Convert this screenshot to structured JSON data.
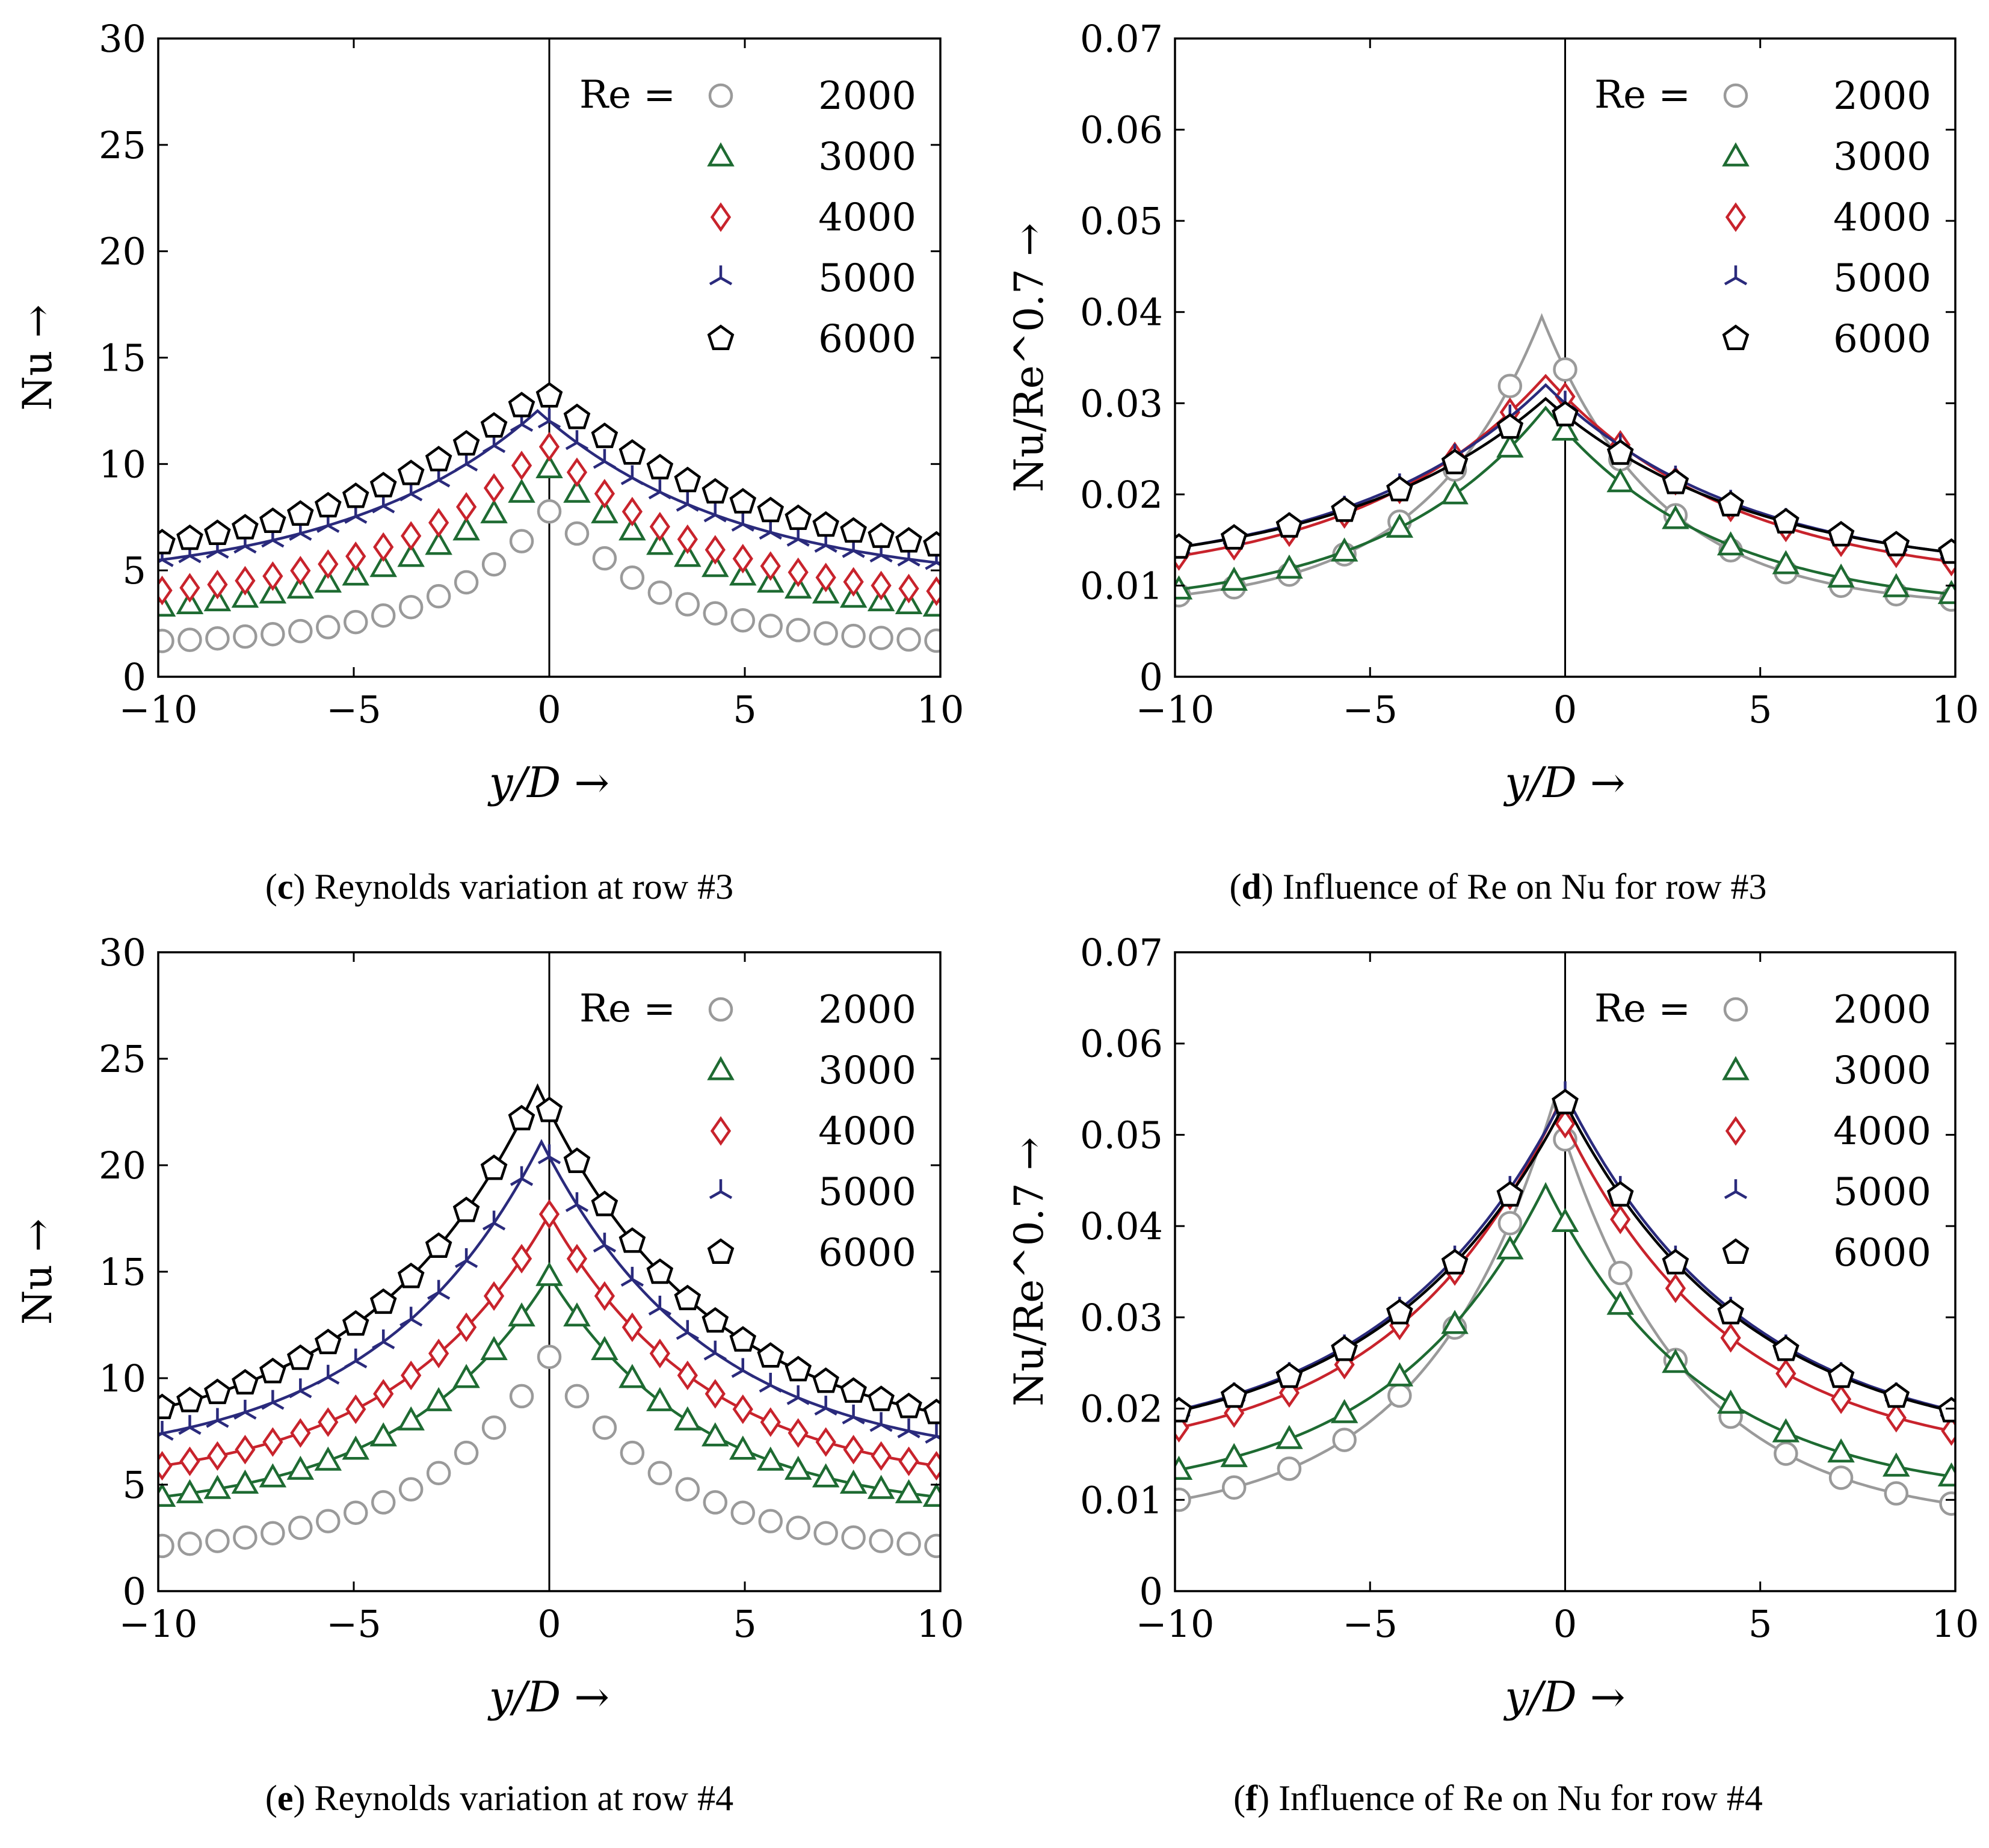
{
  "series_styles": [
    {
      "re": "2000",
      "color": "#9a9a9a",
      "marker": "circle"
    },
    {
      "re": "3000",
      "color": "#1e6b32",
      "marker": "triangle"
    },
    {
      "re": "4000",
      "color": "#c8232c",
      "marker": "diamond"
    },
    {
      "re": "5000",
      "color": "#2a2a7c",
      "marker": "tri-down"
    },
    {
      "re": "6000",
      "color": "#000000",
      "marker": "pentagon"
    }
  ],
  "chart_data": [
    {
      "id": "c",
      "type": "line",
      "caption_letter": "c",
      "caption_text": " Reynolds variation at row #3",
      "xlabel": "y/D →",
      "ylabel": "Nu →",
      "legend_title": "Re =",
      "xlim": [
        -10,
        10
      ],
      "ylim": [
        0,
        30
      ],
      "xticks": [
        -10,
        -5,
        0,
        5,
        10
      ],
      "xtick_labels": [
        "−10",
        "−5",
        "0",
        "5",
        "10"
      ],
      "yticks": [
        0,
        5,
        10,
        15,
        20,
        25,
        30
      ],
      "ytick_labels": [
        "0",
        "5",
        "10",
        "15",
        "20",
        "25",
        "30"
      ],
      "series": [
        {
          "name": "2000",
          "peak": 8.0,
          "edge": 1.5,
          "decay": 2.8,
          "dx": 0.1,
          "line": false
        },
        {
          "name": "3000",
          "peak": 9.8,
          "edge": 2.7,
          "decay": 4.0,
          "dx": 0.0,
          "line": false
        },
        {
          "name": "4000",
          "peak": 11.0,
          "edge": 3.4,
          "decay": 4.0,
          "dx": -0.1,
          "line": false
        },
        {
          "name": "5000",
          "peak": 12.5,
          "edge": 4.3,
          "decay": 5.0,
          "dx": -0.3,
          "line": true
        },
        {
          "name": "6000",
          "peak": 13.5,
          "edge": 4.8,
          "decay": 5.5,
          "dx": -0.2,
          "line": false
        }
      ]
    },
    {
      "id": "d",
      "type": "line",
      "caption_letter": "d",
      "caption_text": " Influence of Re on Nu for row #3",
      "xlabel": "y/D →",
      "ylabel": "Nu/Re^0.7 →",
      "legend_title": "Re =",
      "xlim": [
        -10,
        10
      ],
      "ylim": [
        0,
        0.07
      ],
      "xticks": [
        -10,
        -5,
        0,
        5,
        10
      ],
      "xtick_labels": [
        "−10",
        "−5",
        "0",
        "5",
        "10"
      ],
      "yticks": [
        0,
        0.01,
        0.02,
        0.03,
        0.04,
        0.05,
        0.06,
        0.07
      ],
      "ytick_labels": [
        "0",
        "0.01",
        "0.02",
        "0.03",
        "0.04",
        "0.05",
        "0.06",
        "0.07"
      ],
      "series": [
        {
          "name": "2000",
          "peak": 0.0395,
          "edge": 0.0075,
          "decay": 3.0,
          "dx": -0.6,
          "line": true
        },
        {
          "name": "3000",
          "peak": 0.0295,
          "edge": 0.0072,
          "decay": 4.2,
          "dx": -0.5,
          "line": true
        },
        {
          "name": "4000",
          "peak": 0.033,
          "edge": 0.01,
          "decay": 4.8,
          "dx": -0.5,
          "line": true
        },
        {
          "name": "5000",
          "peak": 0.032,
          "edge": 0.011,
          "decay": 5.0,
          "dx": -0.5,
          "line": true
        },
        {
          "name": "6000",
          "peak": 0.0305,
          "edge": 0.011,
          "decay": 5.2,
          "dx": -0.5,
          "line": true
        }
      ]
    },
    {
      "id": "e",
      "type": "line",
      "caption_letter": "e",
      "caption_text": " Reynolds variation at row #4",
      "xlabel": "y/D →",
      "ylabel": "Nu →",
      "legend_title": "Re =",
      "xlim": [
        -10,
        10
      ],
      "ylim": [
        0,
        30
      ],
      "xticks": [
        -10,
        -5,
        0,
        5,
        10
      ],
      "xtick_labels": [
        "−10",
        "−5",
        "0",
        "5",
        "10"
      ],
      "yticks": [
        0,
        5,
        10,
        15,
        20,
        25,
        30
      ],
      "ytick_labels": [
        "0",
        "5",
        "10",
        "15",
        "20",
        "25",
        "30"
      ],
      "series": [
        {
          "name": "2000",
          "peak": 11.0,
          "edge": 1.7,
          "decay": 3.2,
          "dx": 0.0,
          "line": false
        },
        {
          "name": "3000",
          "peak": 14.8,
          "edge": 3.6,
          "decay": 3.8,
          "dx": 0.0,
          "line": true
        },
        {
          "name": "4000",
          "peak": 17.7,
          "edge": 4.8,
          "decay": 4.0,
          "dx": 0.0,
          "line": true
        },
        {
          "name": "5000",
          "peak": 21.1,
          "edge": 5.9,
          "decay": 4.2,
          "dx": -0.2,
          "line": true
        },
        {
          "name": "6000",
          "peak": 23.7,
          "edge": 6.8,
          "decay": 4.3,
          "dx": -0.3,
          "line": true
        }
      ]
    },
    {
      "id": "f",
      "type": "line",
      "caption_letter": "f",
      "caption_text": " Influence of Re on Nu for row #4",
      "xlabel": "y/D →",
      "ylabel": "Nu/Re^0.7 →",
      "legend_title": "Re =",
      "xlim": [
        -10,
        10
      ],
      "ylim": [
        0,
        0.07
      ],
      "xticks": [
        -10,
        -5,
        0,
        5,
        10
      ],
      "xtick_labels": [
        "−10",
        "−5",
        "0",
        "5",
        "10"
      ],
      "yticks": [
        0,
        0.01,
        0.02,
        0.03,
        0.04,
        0.05,
        0.06,
        0.07
      ],
      "ytick_labels": [
        "0",
        "0.01",
        "0.02",
        "0.03",
        "0.04",
        "0.05",
        "0.06",
        "0.07"
      ],
      "series": [
        {
          "name": "2000",
          "peak": 0.0535,
          "edge": 0.0075,
          "decay": 3.3,
          "dx": -0.3,
          "line": true
        },
        {
          "name": "3000",
          "peak": 0.0445,
          "edge": 0.01,
          "decay": 4.0,
          "dx": -0.5,
          "line": true
        },
        {
          "name": "4000",
          "peak": 0.053,
          "edge": 0.0138,
          "decay": 4.3,
          "dx": -0.2,
          "line": true
        },
        {
          "name": "5000",
          "peak": 0.0545,
          "edge": 0.0153,
          "decay": 4.6,
          "dx": 0.0,
          "line": true
        },
        {
          "name": "6000",
          "peak": 0.0535,
          "edge": 0.0153,
          "decay": 4.6,
          "dx": 0.0,
          "line": true
        }
      ]
    }
  ]
}
